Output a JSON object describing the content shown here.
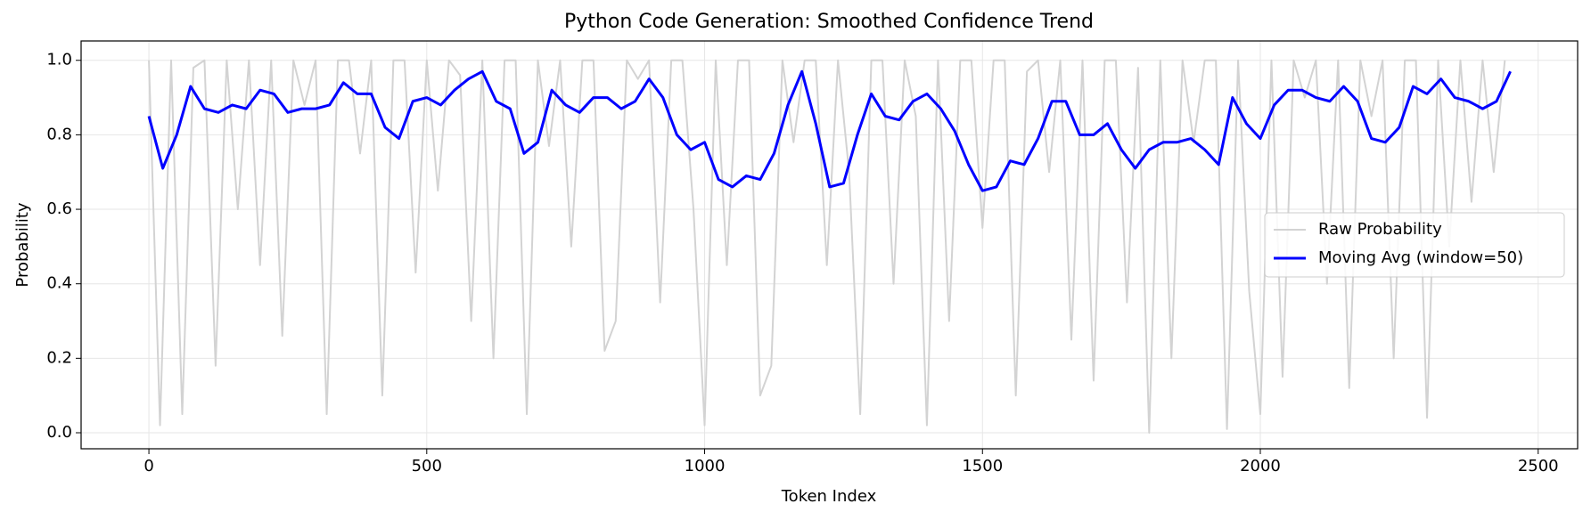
{
  "chart_data": {
    "type": "line",
    "title": "Python Code Generation: Smoothed Confidence Trend",
    "xlabel": "Token Index",
    "ylabel": "Probability",
    "xlim": [
      -122,
      2571
    ],
    "ylim": [
      -0.043,
      1.052
    ],
    "xticks": [
      0,
      500,
      1000,
      1500,
      2000,
      2500
    ],
    "yticks": [
      {
        "value": 0,
        "label": "0.0"
      },
      {
        "value": 0.2,
        "label": "0.2"
      },
      {
        "value": 0.4,
        "label": "0.4"
      },
      {
        "value": 0.6,
        "label": "0.6"
      },
      {
        "value": 0.8,
        "label": "0.8"
      },
      {
        "value": 1,
        "label": "1.0"
      }
    ],
    "grid": true,
    "legend": "center right",
    "series": [
      {
        "name": "Raw Probability",
        "color": "#d3d3d3",
        "width": 2,
        "x": [
          0,
          20,
          40,
          60,
          80,
          100,
          120,
          140,
          160,
          180,
          200,
          220,
          240,
          260,
          280,
          300,
          320,
          340,
          360,
          380,
          400,
          420,
          440,
          460,
          480,
          500,
          520,
          540,
          560,
          580,
          600,
          620,
          640,
          660,
          680,
          700,
          720,
          740,
          760,
          780,
          800,
          820,
          840,
          860,
          880,
          900,
          920,
          940,
          960,
          980,
          1000,
          1020,
          1040,
          1060,
          1080,
          1100,
          1120,
          1140,
          1160,
          1180,
          1200,
          1220,
          1240,
          1260,
          1280,
          1300,
          1320,
          1340,
          1360,
          1380,
          1400,
          1420,
          1440,
          1460,
          1480,
          1500,
          1520,
          1540,
          1560,
          1580,
          1600,
          1620,
          1640,
          1660,
          1680,
          1700,
          1720,
          1740,
          1760,
          1780,
          1800,
          1820,
          1840,
          1860,
          1880,
          1900,
          1920,
          1940,
          1960,
          1980,
          2000,
          2020,
          2040,
          2060,
          2080,
          2100,
          2120,
          2140,
          2160,
          2180,
          2200,
          2220,
          2240,
          2260,
          2280,
          2300,
          2320,
          2340,
          2360,
          2380,
          2400,
          2420,
          2440
        ],
        "values": [
          1,
          0.02,
          1,
          0.05,
          0.98,
          1,
          0.18,
          1,
          0.6,
          1,
          0.45,
          1,
          0.26,
          1,
          0.88,
          1,
          0.05,
          1,
          1,
          0.75,
          1,
          0.1,
          1,
          1,
          0.43,
          1,
          0.65,
          1,
          0.96,
          0.3,
          1,
          0.2,
          1,
          1,
          0.05,
          1,
          0.77,
          1,
          0.5,
          1,
          1,
          0.22,
          0.3,
          1,
          0.95,
          1,
          0.35,
          1,
          1,
          0.6,
          0.02,
          1,
          0.45,
          1,
          1,
          0.1,
          0.18,
          1,
          0.78,
          1,
          1,
          0.45,
          1,
          0.7,
          0.05,
          1,
          1,
          0.4,
          1,
          0.85,
          0.02,
          1,
          0.3,
          1,
          1,
          0.55,
          1,
          1,
          0.1,
          0.97,
          1,
          0.7,
          1,
          0.25,
          1,
          0.14,
          1,
          1,
          0.35,
          0.98,
          0,
          1,
          0.2,
          1,
          0.78,
          1,
          1,
          0.01,
          1,
          0.38,
          0.05,
          1,
          0.15,
          1,
          0.9,
          1,
          0.4,
          1,
          0.12,
          1,
          0.85,
          1,
          0.2,
          1,
          1,
          0.04,
          1,
          0.5,
          1,
          0.62,
          1,
          0.7,
          1
        ]
      },
      {
        "name": "Moving Avg (window=50)",
        "color": "#0000ff",
        "width": 3,
        "x": [
          0,
          25,
          50,
          75,
          100,
          125,
          150,
          175,
          200,
          225,
          250,
          275,
          300,
          325,
          350,
          375,
          400,
          425,
          450,
          475,
          500,
          525,
          550,
          575,
          600,
          625,
          650,
          675,
          700,
          725,
          750,
          775,
          800,
          825,
          850,
          875,
          900,
          925,
          950,
          975,
          1000,
          1025,
          1050,
          1075,
          1100,
          1125,
          1150,
          1175,
          1200,
          1225,
          1250,
          1275,
          1300,
          1325,
          1350,
          1375,
          1400,
          1425,
          1450,
          1475,
          1500,
          1525,
          1550,
          1575,
          1600,
          1625,
          1650,
          1675,
          1700,
          1725,
          1750,
          1775,
          1800,
          1825,
          1850,
          1875,
          1900,
          1925,
          1950,
          1975,
          2000,
          2025,
          2050,
          2075,
          2100,
          2125,
          2150,
          2175,
          2200,
          2225,
          2250,
          2275,
          2300,
          2325,
          2350,
          2375,
          2400,
          2425,
          2450
        ],
        "values": [
          0.85,
          0.71,
          0.8,
          0.93,
          0.87,
          0.86,
          0.88,
          0.87,
          0.92,
          0.91,
          0.86,
          0.87,
          0.87,
          0.88,
          0.94,
          0.91,
          0.91,
          0.82,
          0.79,
          0.89,
          0.9,
          0.88,
          0.92,
          0.95,
          0.97,
          0.89,
          0.87,
          0.75,
          0.78,
          0.92,
          0.88,
          0.86,
          0.9,
          0.9,
          0.87,
          0.89,
          0.95,
          0.9,
          0.8,
          0.76,
          0.78,
          0.68,
          0.66,
          0.69,
          0.68,
          0.75,
          0.88,
          0.97,
          0.83,
          0.66,
          0.67,
          0.8,
          0.91,
          0.85,
          0.84,
          0.89,
          0.91,
          0.87,
          0.81,
          0.72,
          0.65,
          0.66,
          0.73,
          0.72,
          0.79,
          0.89,
          0.89,
          0.8,
          0.8,
          0.83,
          0.76,
          0.71,
          0.76,
          0.78,
          0.78,
          0.79,
          0.76,
          0.72,
          0.9,
          0.83,
          0.79,
          0.88,
          0.92,
          0.92,
          0.9,
          0.89,
          0.93,
          0.89,
          0.79,
          0.78,
          0.82,
          0.93,
          0.91,
          0.95,
          0.9,
          0.89,
          0.87,
          0.89,
          0.97
        ]
      }
    ]
  }
}
